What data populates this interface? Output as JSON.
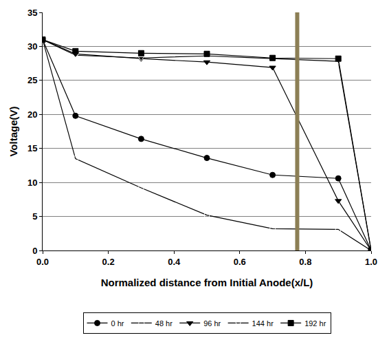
{
  "chart_data": {
    "type": "line",
    "x_label": "Normalized distance from Initial Anode(x/L)",
    "y_label": "Voltage(V)",
    "x": [
      0.0,
      0.1,
      0.3,
      0.5,
      0.7,
      0.9,
      1.0
    ],
    "series": [
      {
        "name": "0 hr",
        "color": "#000000",
        "marker": "circle",
        "line_style": "solid",
        "values": [
          31,
          19.8,
          16.4,
          13.6,
          11.1,
          10.6,
          0
        ]
      },
      {
        "name": "48 hr",
        "color": "#000000",
        "marker": "circle-open",
        "line_style": "solid",
        "values": [
          31,
          13.5,
          9.2,
          5.2,
          3.2,
          3.1,
          0
        ]
      },
      {
        "name": "96 hr",
        "color": "#000000",
        "marker": "triangle-down",
        "line_style": "solid",
        "values": [
          31,
          28.9,
          28.2,
          27.7,
          26.9,
          7.3,
          0
        ]
      },
      {
        "name": "144 hr",
        "color": "#000000",
        "marker": "triangle-down-open",
        "line_style": "solid",
        "values": [
          31,
          28.7,
          28.3,
          28.6,
          28.2,
          27.8,
          0
        ]
      },
      {
        "name": "192 hr",
        "color": "#000000",
        "marker": "square",
        "line_style": "solid",
        "values": [
          31,
          29.3,
          29.0,
          28.9,
          28.3,
          28.2,
          0
        ]
      }
    ],
    "vertical_line_x": 0.775,
    "xlim": [
      0,
      1
    ],
    "xticks": [
      {
        "value": 0,
        "label": "0.0"
      },
      0.2,
      0.4,
      0.6,
      0.8,
      {
        "value": 1,
        "label": "1.0"
      }
    ],
    "ylim": [
      0,
      35
    ],
    "yticks": [
      0,
      5,
      10,
      15,
      20,
      25,
      30,
      35
    ],
    "grid": true,
    "legend": "bottom"
  }
}
